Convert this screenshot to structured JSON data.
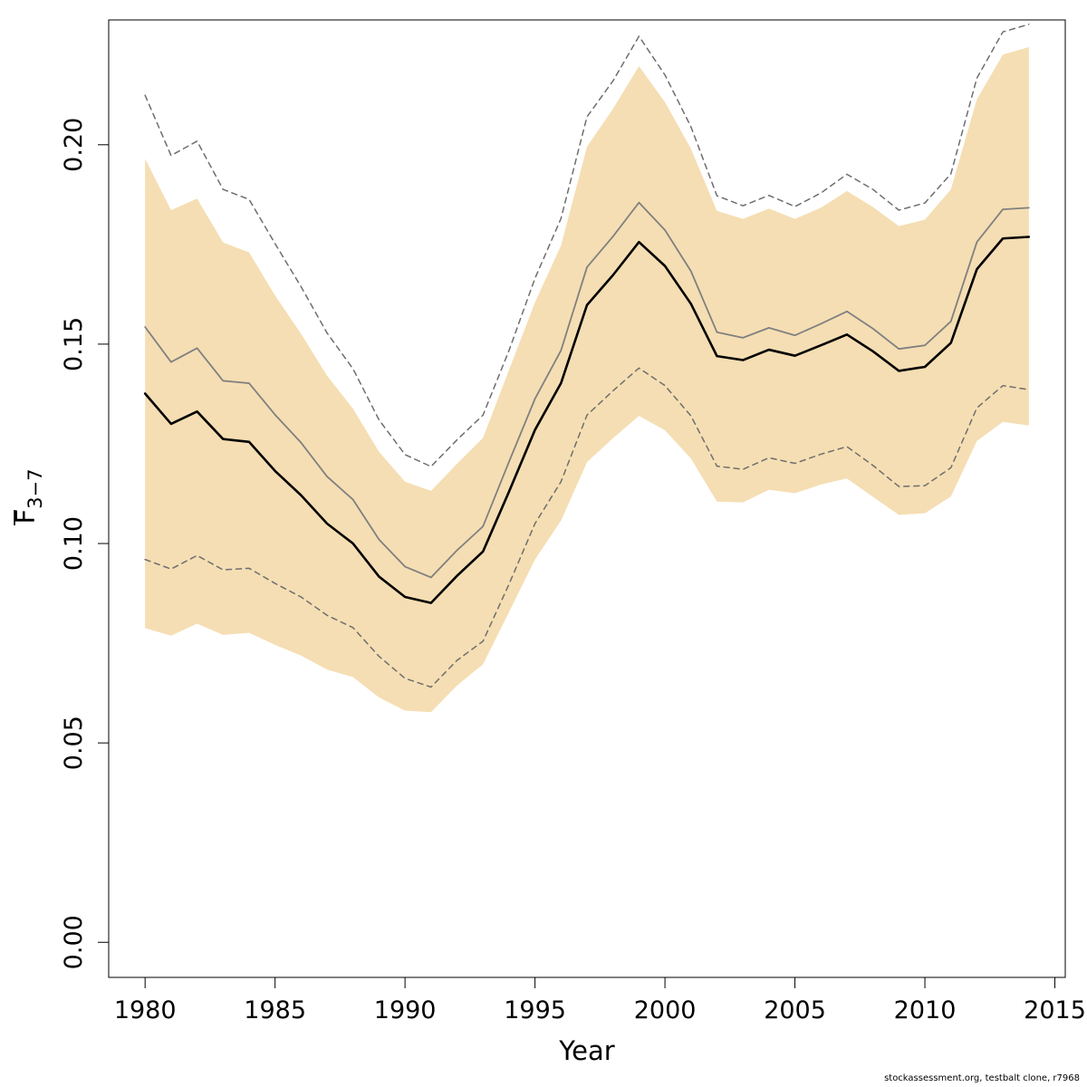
{
  "chart_data": {
    "type": "line",
    "xlabel": "Year",
    "ylabel": {
      "base": "F",
      "subscript": "3−7",
      "overline": true
    },
    "xlim": [
      1978.6,
      2015.4
    ],
    "ylim": [
      -0.0088,
      0.2313
    ],
    "xticks": [
      {
        "value": 1980,
        "label": "1980"
      },
      {
        "value": 1985,
        "label": "1985"
      },
      {
        "value": 1990,
        "label": "1990"
      },
      {
        "value": 1995,
        "label": "1995"
      },
      {
        "value": 2000,
        "label": "2000"
      },
      {
        "value": 2005,
        "label": "2005"
      },
      {
        "value": 2010,
        "label": "2010"
      },
      {
        "value": 2015,
        "label": "2015"
      }
    ],
    "yticks": [
      {
        "value": 0.0,
        "label": "0.00"
      },
      {
        "value": 0.05,
        "label": "0.05"
      },
      {
        "value": 0.1,
        "label": "0.10"
      },
      {
        "value": 0.15,
        "label": "0.15"
      },
      {
        "value": 0.2,
        "label": "0.20"
      }
    ],
    "grid": false,
    "x": [
      1980,
      1981,
      1982,
      1983,
      1984,
      1985,
      1986,
      1987,
      1988,
      1989,
      1990,
      1991,
      1992,
      1993,
      1994,
      1995,
      1996,
      1997,
      1998,
      1999,
      2000,
      2001,
      2002,
      2003,
      2004,
      2005,
      2006,
      2007,
      2008,
      2009,
      2010,
      2011,
      2012,
      2013,
      2014
    ],
    "band": {
      "color": "#f5deb3",
      "upper": [
        0.1965,
        0.1836,
        0.1865,
        0.1755,
        0.173,
        0.1622,
        0.1526,
        0.1421,
        0.1338,
        0.123,
        0.1155,
        0.1132,
        0.12,
        0.1265,
        0.1435,
        0.1605,
        0.1747,
        0.1995,
        0.209,
        0.2197,
        0.2107,
        0.199,
        0.1834,
        0.1814,
        0.184,
        0.1814,
        0.1842,
        0.1884,
        0.1844,
        0.1796,
        0.1812,
        0.1888,
        0.2114,
        0.2226,
        0.2245
      ],
      "lower": [
        0.0788,
        0.0769,
        0.0799,
        0.0771,
        0.0776,
        0.0746,
        0.0719,
        0.0684,
        0.0665,
        0.0614,
        0.0581,
        0.0577,
        0.0644,
        0.0697,
        0.0828,
        0.096,
        0.1057,
        0.1204,
        0.1264,
        0.132,
        0.1284,
        0.1213,
        0.1105,
        0.1103,
        0.1135,
        0.1126,
        0.1148,
        0.1163,
        0.1117,
        0.1072,
        0.1076,
        0.1118,
        0.1257,
        0.1305,
        0.1296
      ]
    },
    "series": [
      {
        "style": "median",
        "color": "#000000",
        "values": [
          0.1376,
          0.13,
          0.1331,
          0.1262,
          0.1255,
          0.1182,
          0.1121,
          0.105,
          0.1,
          0.0917,
          0.0866,
          0.0851,
          0.0919,
          0.098,
          0.113,
          0.1285,
          0.1402,
          0.1598,
          0.1673,
          0.1756,
          0.1696,
          0.1601,
          0.147,
          0.146,
          0.1486,
          0.1471,
          0.1497,
          0.1524,
          0.1482,
          0.1433,
          0.1443,
          0.1503,
          0.1688,
          0.1765,
          0.1769
        ]
      },
      {
        "style": "mean",
        "color": "#808080",
        "values": [
          0.1543,
          0.1455,
          0.149,
          0.1408,
          0.1402,
          0.1323,
          0.1253,
          0.1168,
          0.111,
          0.101,
          0.0942,
          0.0915,
          0.0983,
          0.1043,
          0.1205,
          0.1363,
          0.1484,
          0.1693,
          0.177,
          0.1855,
          0.1786,
          0.1683,
          0.153,
          0.1516,
          0.1541,
          0.1522,
          0.1551,
          0.1582,
          0.1539,
          0.1488,
          0.1497,
          0.1557,
          0.1756,
          0.1838,
          0.1842
        ]
      },
      {
        "style": "upper-dashed",
        "color": "#6e6e6e",
        "values": [
          0.2124,
          0.1973,
          0.2009,
          0.1888,
          0.1863,
          0.1752,
          0.1644,
          0.1528,
          0.1438,
          0.131,
          0.1223,
          0.1193,
          0.126,
          0.1322,
          0.1484,
          0.1665,
          0.1815,
          0.207,
          0.216,
          0.2272,
          0.2175,
          0.2045,
          0.1872,
          0.1847,
          0.1873,
          0.1845,
          0.1879,
          0.1926,
          0.1888,
          0.1836,
          0.1854,
          0.1927,
          0.2167,
          0.2283,
          0.2302
        ]
      },
      {
        "style": "lower-dashed",
        "color": "#6e6e6e",
        "values": [
          0.096,
          0.0936,
          0.097,
          0.0934,
          0.0938,
          0.09,
          0.0866,
          0.082,
          0.0789,
          0.0717,
          0.0662,
          0.064,
          0.0707,
          0.0755,
          0.0898,
          0.105,
          0.1155,
          0.1322,
          0.1383,
          0.144,
          0.1396,
          0.132,
          0.1194,
          0.1186,
          0.1215,
          0.1201,
          0.1224,
          0.1243,
          0.1196,
          0.1143,
          0.1145,
          0.119,
          0.134,
          0.1396,
          0.1386
        ]
      }
    ]
  },
  "footer": {
    "credit": "stockassessment.org, testbalt  clone, r7968"
  }
}
